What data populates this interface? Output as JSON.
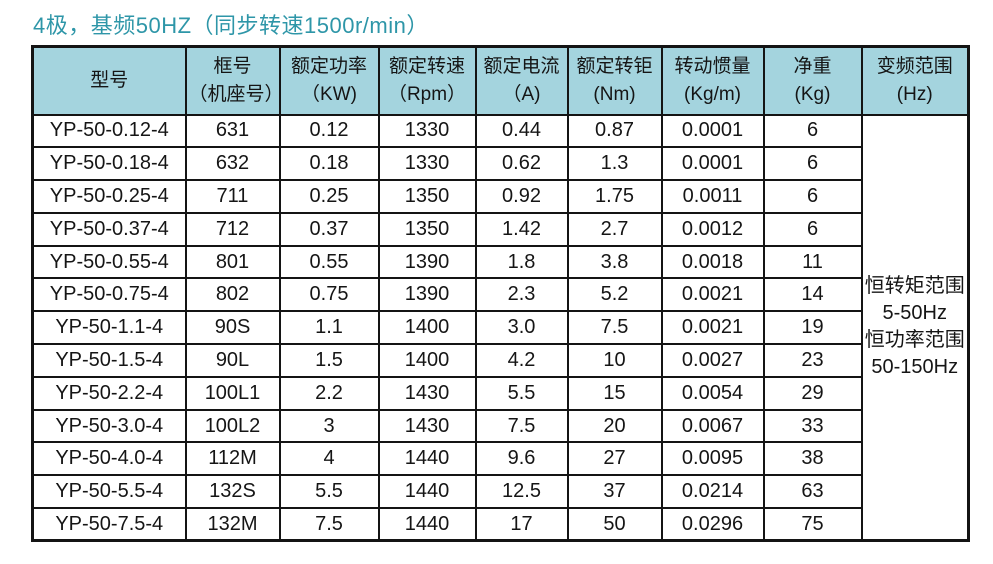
{
  "title": "4极，基频50HZ（同步转速1500r/min）",
  "colors": {
    "title": "#2e96a8",
    "header_bg": "#a4d4de",
    "border": "#141414",
    "text": "#151515",
    "page_bg": "#ffffff"
  },
  "table": {
    "headers": [
      {
        "id": "model",
        "lines": [
          "型号",
          ""
        ]
      },
      {
        "id": "frame",
        "lines": [
          "框号",
          "（机座号）"
        ]
      },
      {
        "id": "rated-power",
        "lines": [
          "额定功率",
          "（KW)"
        ]
      },
      {
        "id": "rated-speed",
        "lines": [
          "额定转速",
          "（Rpm）"
        ]
      },
      {
        "id": "rated-current",
        "lines": [
          "额定电流",
          "（A)"
        ]
      },
      {
        "id": "rated-torque",
        "lines": [
          "额定转钜",
          "(Nm)"
        ]
      },
      {
        "id": "inertia",
        "lines": [
          "转动惯量",
          "(Kg/m)"
        ]
      },
      {
        "id": "net-weight",
        "lines": [
          "净重",
          "(Kg)"
        ]
      },
      {
        "id": "freq-range",
        "lines": [
          "变频范围",
          "(Hz)"
        ]
      }
    ],
    "rows": [
      [
        "YP-50-0.12-4",
        "631",
        "0.12",
        "1330",
        "0.44",
        "0.87",
        "0.0001",
        "6"
      ],
      [
        "YP-50-0.18-4",
        "632",
        "0.18",
        "1330",
        "0.62",
        "1.3",
        "0.0001",
        "6"
      ],
      [
        "YP-50-0.25-4",
        "711",
        "0.25",
        "1350",
        "0.92",
        "1.75",
        "0.0011",
        "6"
      ],
      [
        "YP-50-0.37-4",
        "712",
        "0.37",
        "1350",
        "1.42",
        "2.7",
        "0.0012",
        "6"
      ],
      [
        "YP-50-0.55-4",
        "801",
        "0.55",
        "1390",
        "1.8",
        "3.8",
        "0.0018",
        "11"
      ],
      [
        "YP-50-0.75-4",
        "802",
        "0.75",
        "1390",
        "2.3",
        "5.2",
        "0.0021",
        "14"
      ],
      [
        "YP-50-1.1-4",
        "90S",
        "1.1",
        "1400",
        "3.0",
        "7.5",
        "0.0021",
        "19"
      ],
      [
        "YP-50-1.5-4",
        "90L",
        "1.5",
        "1400",
        "4.2",
        "10",
        "0.0027",
        "23"
      ],
      [
        "YP-50-2.2-4",
        "100L1",
        "2.2",
        "1430",
        "5.5",
        "15",
        "0.0054",
        "29"
      ],
      [
        "YP-50-3.0-4",
        "100L2",
        "3",
        "1430",
        "7.5",
        "20",
        "0.0067",
        "33"
      ],
      [
        "YP-50-4.0-4",
        "112M",
        "4",
        "1440",
        "9.6",
        "27",
        "0.0095",
        "38"
      ],
      [
        "YP-50-5.5-4",
        "132S",
        "5.5",
        "1440",
        "12.5",
        "37",
        "0.0214",
        "63"
      ],
      [
        "YP-50-7.5-4",
        "132M",
        "7.5",
        "1440",
        "17",
        "50",
        "0.0296",
        "75"
      ]
    ],
    "frequency_range_cell": {
      "lines": [
        "恒转矩范围",
        "5-50Hz",
        "恒功率范围",
        "50-150Hz"
      ]
    }
  }
}
